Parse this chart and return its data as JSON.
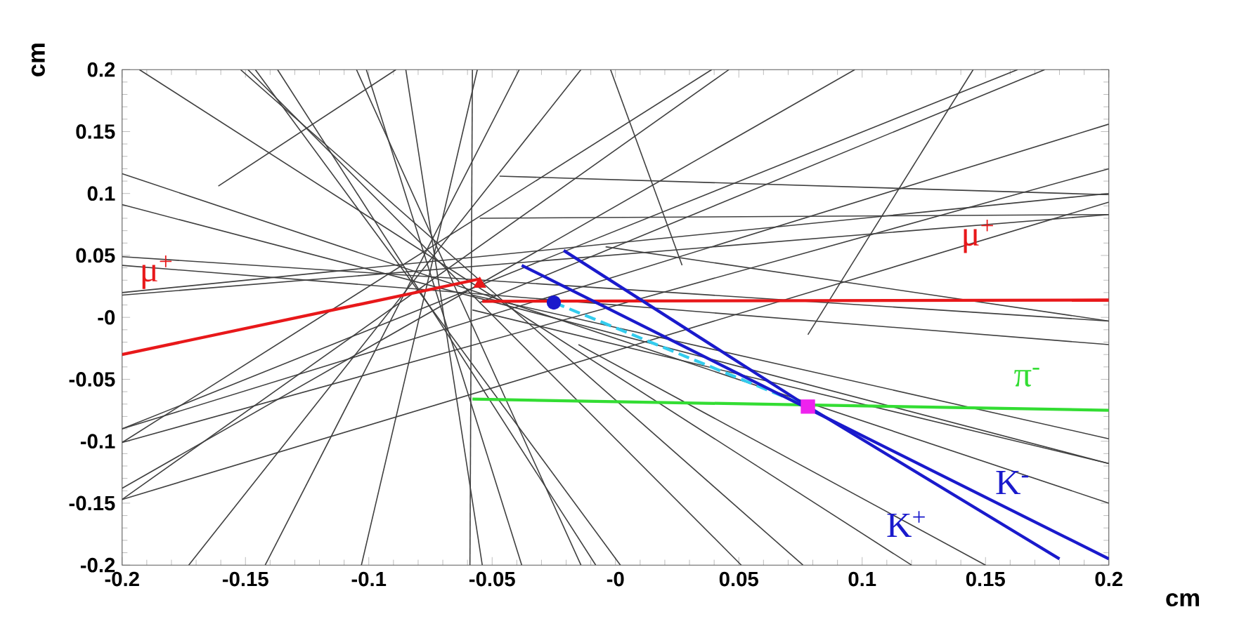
{
  "chart_data": {
    "type": "line",
    "xlabel": "cm",
    "ylabel": "cm",
    "xlim": [
      -0.2,
      0.2
    ],
    "ylim": [
      -0.2,
      0.2
    ],
    "xticks": [
      -0.2,
      -0.15,
      -0.1,
      -0.05,
      {
        "value": 0,
        "label": "-0"
      },
      0.05,
      0.1,
      0.15,
      0.2
    ],
    "yticks": [
      -0.2,
      -0.15,
      -0.1,
      -0.05,
      {
        "value": 0,
        "label": "-0"
      },
      0.05,
      0.1,
      0.15,
      0.2
    ],
    "grid": false,
    "legend": false,
    "series": [
      {
        "color": "#404040",
        "x": [
          -0.193,
          0.12
        ],
        "values": [
          0.2,
          -0.2
        ]
      },
      {
        "color": "#404040",
        "x": [
          -0.152,
          0.076
        ],
        "values": [
          0.2,
          -0.2
        ]
      },
      {
        "color": "#404040",
        "x": [
          -0.149,
          0.051
        ],
        "values": [
          0.2,
          -0.2
        ]
      },
      {
        "color": "#404040",
        "x": [
          -0.146,
          0.002
        ],
        "values": [
          0.2,
          -0.2
        ]
      },
      {
        "color": "#404040",
        "x": [
          -0.137,
          -0.008
        ],
        "values": [
          0.2,
          -0.2
        ]
      },
      {
        "color": "#404040",
        "x": [
          -0.105,
          -0.014
        ],
        "values": [
          0.2,
          -0.2
        ]
      },
      {
        "color": "#404040",
        "x": [
          -0.101,
          -0.038
        ],
        "values": [
          0.2,
          -0.2
        ]
      },
      {
        "color": "#404040",
        "x": [
          -0.085,
          -0.054
        ],
        "values": [
          0.2,
          -0.2
        ]
      },
      {
        "color": "#404040",
        "x": [
          -0.058,
          -0.059
        ],
        "values": [
          0.2,
          -0.2
        ]
      },
      {
        "color": "#404040",
        "x": [
          -0.056,
          -0.103
        ],
        "values": [
          0.2,
          -0.2
        ]
      },
      {
        "color": "#404040",
        "x": [
          -0.039,
          -0.142
        ],
        "values": [
          0.2,
          -0.2
        ]
      },
      {
        "color": "#404040",
        "x": [
          -0.089,
          -0.161
        ],
        "values": [
          0.2,
          0.106
        ]
      },
      {
        "color": "#404040",
        "x": [
          -0.014,
          -0.173
        ],
        "values": [
          0.2,
          -0.2
        ]
      },
      {
        "color": "#404040",
        "x": [
          -0.002,
          0.027
        ],
        "values": [
          0.2,
          0.042
        ]
      },
      {
        "color": "#404040",
        "x": [
          0.039,
          -0.2
        ],
        "values": [
          0.2,
          -0.101
        ]
      },
      {
        "color": "#404040",
        "x": [
          0.046,
          -0.2
        ],
        "values": [
          0.2,
          -0.147
        ]
      },
      {
        "color": "#404040",
        "x": [
          0.097,
          -0.2
        ],
        "values": [
          0.2,
          -0.138
        ]
      },
      {
        "color": "#404040",
        "x": [
          0.145,
          0.078
        ],
        "values": [
          0.2,
          -0.014
        ]
      },
      {
        "color": "#404040",
        "x": [
          0.163,
          -0.2
        ],
        "values": [
          0.2,
          -0.09
        ]
      },
      {
        "color": "#404040",
        "x": [
          0.174,
          -0.055
        ],
        "values": [
          0.2,
          0.012
        ]
      },
      {
        "color": "#404040",
        "x": [
          -0.2,
          0.2
        ],
        "values": [
          0.116,
          -0.15
        ]
      },
      {
        "color": "#404040",
        "x": [
          -0.2,
          0.2
        ],
        "values": [
          0.091,
          -0.118
        ]
      },
      {
        "color": "#404040",
        "x": [
          -0.2,
          0.2
        ],
        "values": [
          0.049,
          -0.003
        ]
      },
      {
        "color": "#404040",
        "x": [
          -0.2,
          0.2
        ],
        "values": [
          0.042,
          -0.022
        ]
      },
      {
        "color": "#404040",
        "x": [
          -0.2,
          0.2
        ],
        "values": [
          0.02,
          0.1
        ]
      },
      {
        "color": "#404040",
        "x": [
          -0.2,
          0.2
        ],
        "values": [
          0.018,
          0.083
        ]
      },
      {
        "color": "#404040",
        "x": [
          -0.2,
          0.2
        ],
        "values": [
          -0.09,
          0.156
        ]
      },
      {
        "color": "#404040",
        "x": [
          -0.2,
          0.2
        ],
        "values": [
          -0.101,
          0.12
        ]
      },
      {
        "color": "#404040",
        "x": [
          -0.2,
          0.2
        ],
        "values": [
          -0.147,
          0.093
        ]
      },
      {
        "color": "#404040",
        "x": [
          -0.047,
          0.2
        ],
        "values": [
          0.114,
          0.099
        ]
      },
      {
        "color": "#404040",
        "x": [
          -0.055,
          0.2
        ],
        "values": [
          0.08,
          0.083
        ]
      },
      {
        "color": "#404040",
        "x": [
          -0.058,
          0.2
        ],
        "values": [
          0.006,
          -0.118
        ]
      },
      {
        "color": "#404040",
        "x": [
          -0.058,
          0.2
        ],
        "values": [
          0.018,
          -0.098
        ]
      },
      {
        "color": "#404040",
        "x": [
          -0.015,
          0.15
        ],
        "values": [
          -0.022,
          -0.2
        ]
      },
      {
        "color": "#404040",
        "x": [
          -0.004,
          0.2
        ],
        "values": [
          0.057,
          -0.003
        ]
      },
      {
        "color": "#e8181a",
        "x": [
          -0.2,
          -0.055
        ],
        "values": [
          -0.03,
          0.031
        ]
      },
      {
        "color": "#e8181a",
        "x": [
          -0.054,
          0.2
        ],
        "values": [
          0.013,
          0.014
        ]
      },
      {
        "color": "#33ccee",
        "line_style": "dashed",
        "x": [
          -0.025,
          0.078
        ],
        "values": [
          0.012,
          -0.072
        ]
      },
      {
        "color": "#33dd33",
        "x": [
          -0.058,
          0.2
        ],
        "values": [
          -0.066,
          -0.075
        ]
      },
      {
        "color": "#1a1acc",
        "x": [
          -0.038,
          0.2
        ],
        "values": [
          0.042,
          -0.195
        ]
      },
      {
        "color": "#1a1acc",
        "x": [
          -0.021,
          0.078,
          0.18
        ],
        "values": [
          0.054,
          -0.072,
          -0.195
        ]
      },
      {
        "type": "scatter",
        "marker": "triangle",
        "color": "#e8181a",
        "x": [
          -0.055
        ],
        "values": [
          0.027
        ]
      },
      {
        "type": "scatter",
        "marker": "circle",
        "color": "#1a1acc",
        "x": [
          -0.025
        ],
        "values": [
          0.012
        ]
      },
      {
        "type": "scatter",
        "marker": "square",
        "color": "#ee22ee",
        "x": [
          0.078
        ],
        "values": [
          -0.072
        ]
      }
    ],
    "annotations": [
      {
        "text": "μ$^{+}$",
        "x": -0.186,
        "y": -0.024
      },
      {
        "text": "μ$^{+}$",
        "x": 0.147,
        "y": 0.014
      },
      {
        "text": "π$^{-}$",
        "x": 0.167,
        "y": -0.074
      },
      {
        "text": "K$^{-}$",
        "x": 0.161,
        "y": -0.156
      },
      {
        "text": "K$^{+}$",
        "x": 0.118,
        "y": -0.12
      }
    ]
  }
}
